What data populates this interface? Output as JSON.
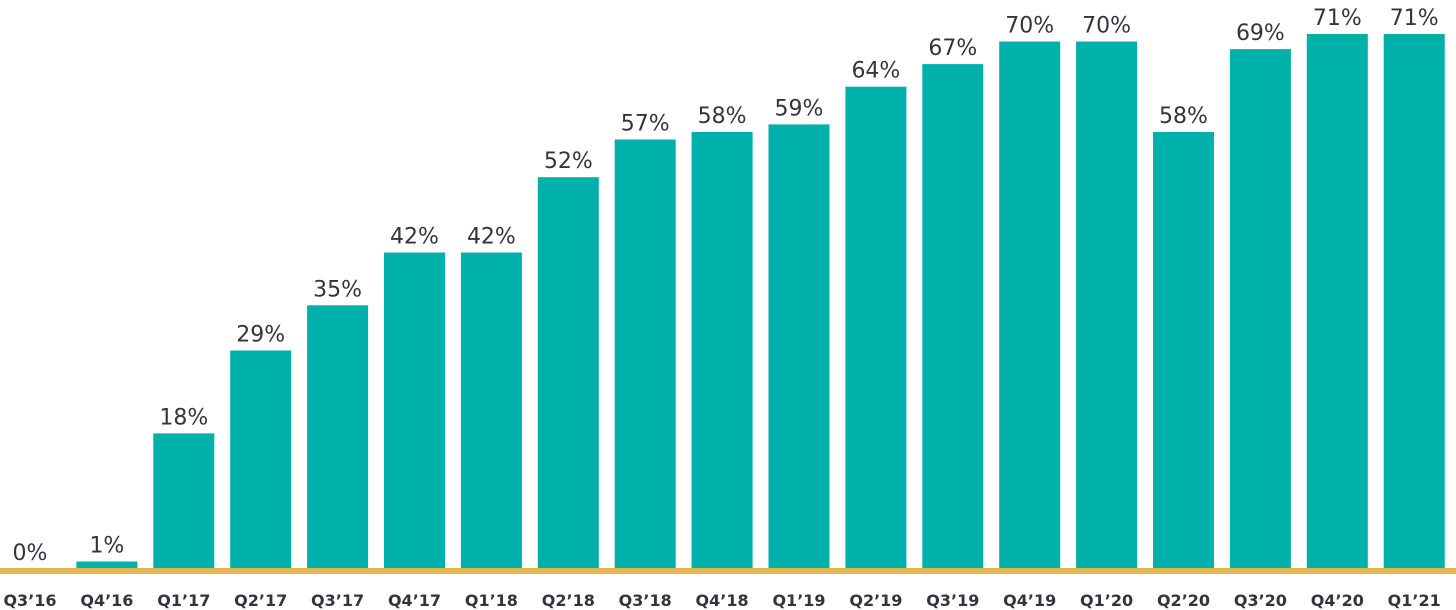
{
  "chart_data": {
    "type": "bar",
    "categories": [
      "Q3’16",
      "Q4’16",
      "Q1’17",
      "Q2’17",
      "Q3’17",
      "Q4’17",
      "Q1’18",
      "Q2’18",
      "Q3’18",
      "Q4’18",
      "Q1’19",
      "Q2’19",
      "Q3’19",
      "Q4’19",
      "Q1’20",
      "Q2’20",
      "Q3’20",
      "Q4’20",
      "Q1’21"
    ],
    "values": [
      0,
      1,
      18,
      29,
      35,
      42,
      42,
      52,
      57,
      58,
      59,
      64,
      67,
      70,
      70,
      58,
      69,
      71,
      71
    ],
    "value_labels": [
      "0%",
      "1%",
      "18%",
      "29%",
      "35%",
      "42%",
      "42%",
      "52%",
      "57%",
      "58%",
      "59%",
      "64%",
      "67%",
      "70%",
      "70%",
      "58%",
      "69%",
      "71%",
      "71%"
    ],
    "title": "",
    "xlabel": "",
    "ylabel": "",
    "ylim": [
      0,
      71
    ],
    "grid": false,
    "legend": "none",
    "colors": {
      "bar": "#00b0ab",
      "baseline": "#e2b84e",
      "text": "#34343f"
    }
  }
}
